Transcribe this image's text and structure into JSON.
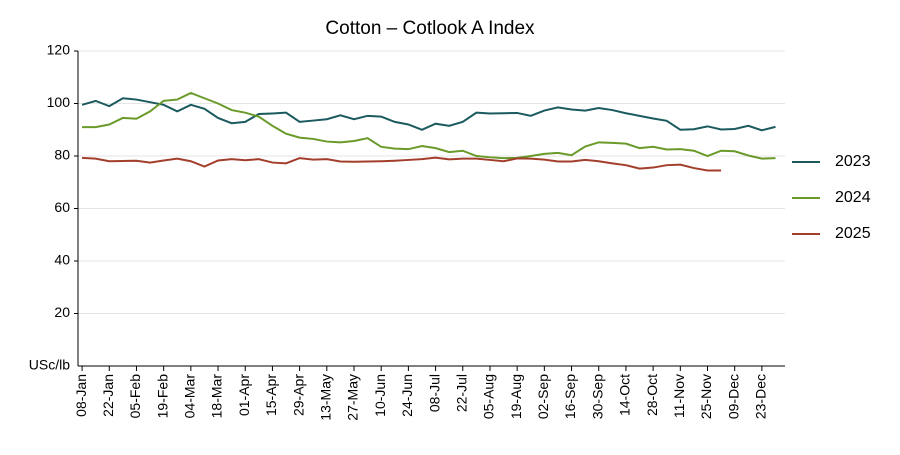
{
  "chart_data": {
    "type": "line",
    "title": "Cotton – Cotlook A Index",
    "y_label": "USc/lb",
    "categories": [
      "08-Jan",
      null,
      "22-Jan",
      null,
      "05-Feb",
      null,
      "19-Feb",
      null,
      "04-Mar",
      null,
      "18-Mar",
      null,
      "01-Apr",
      null,
      "15-Apr",
      null,
      "29-Apr",
      null,
      "13-May",
      null,
      "27-May",
      null,
      "10-Jun",
      null,
      "24-Jun",
      null,
      "08-Jul",
      null,
      "22-Jul",
      null,
      "05-Aug",
      null,
      "19-Aug",
      null,
      "02-Sep",
      null,
      "16-Sep",
      null,
      "30-Sep",
      null,
      "14-Oct",
      null,
      "28-Oct",
      null,
      "11-Nov",
      null,
      "25-Nov",
      null,
      "09-Dec",
      null,
      "23-Dec",
      null
    ],
    "series": [
      {
        "name": "2023",
        "color": "#1b5a5e",
        "values": [
          99.5,
          101,
          99,
          102,
          101.5,
          100.5,
          99.5,
          97,
          99.5,
          98,
          94.5,
          92.5,
          93,
          96,
          96.2,
          96.5,
          93,
          93.5,
          94,
          95.5,
          94,
          95.3,
          95,
          93,
          92,
          90,
          92.3,
          91.5,
          93,
          96.5,
          96.2,
          96.3,
          96.4,
          95.3,
          97.3,
          98.5,
          97.7,
          97.3,
          98.3,
          97.5,
          96.3,
          95.3,
          94.3,
          93.4,
          90,
          90.2,
          91.3,
          90.1,
          90.3,
          91.5,
          89.8,
          91.1
        ]
      },
      {
        "name": "2024",
        "color": "#6a9a2a",
        "values": [
          91,
          91,
          92,
          94.5,
          94.2,
          97,
          101,
          101.5,
          104,
          102,
          100,
          97.5,
          96.5,
          95,
          91.5,
          88.5,
          87,
          86.5,
          85.5,
          85.2,
          85.7,
          86.8,
          83.5,
          82.8,
          82.6,
          83.8,
          83,
          81.5,
          82,
          80,
          79.5,
          79.2,
          79.3,
          80,
          80.8,
          81.2,
          80.3,
          83.6,
          85.2,
          85,
          84.7,
          83,
          83.5,
          82.5,
          82.6,
          82,
          80,
          82,
          81.8,
          80.2,
          79,
          79.2
        ]
      },
      {
        "name": "2025",
        "color": "#a33e2c",
        "values": [
          79.3,
          79,
          78,
          78.1,
          78.2,
          77.5,
          78.3,
          79,
          78,
          76,
          78.3,
          78.8,
          78.4,
          78.8,
          77.5,
          77.2,
          79.2,
          78.6,
          78.8,
          77.9,
          77.8,
          77.9,
          78,
          78.2,
          78.5,
          78.8,
          79.4,
          78.7,
          79,
          79,
          78.5,
          78,
          79.1,
          79,
          78.6,
          77.9,
          77.9,
          78.5,
          78,
          77.2,
          76.5,
          75.2,
          75.6,
          76.5,
          76.7,
          75.4,
          74.5,
          74.5,
          null,
          null,
          null,
          null
        ]
      }
    ],
    "ylim": [
      0,
      120
    ],
    "yticks": [
      20,
      40,
      60,
      80,
      100,
      120
    ],
    "grid": true,
    "legend": "right"
  }
}
